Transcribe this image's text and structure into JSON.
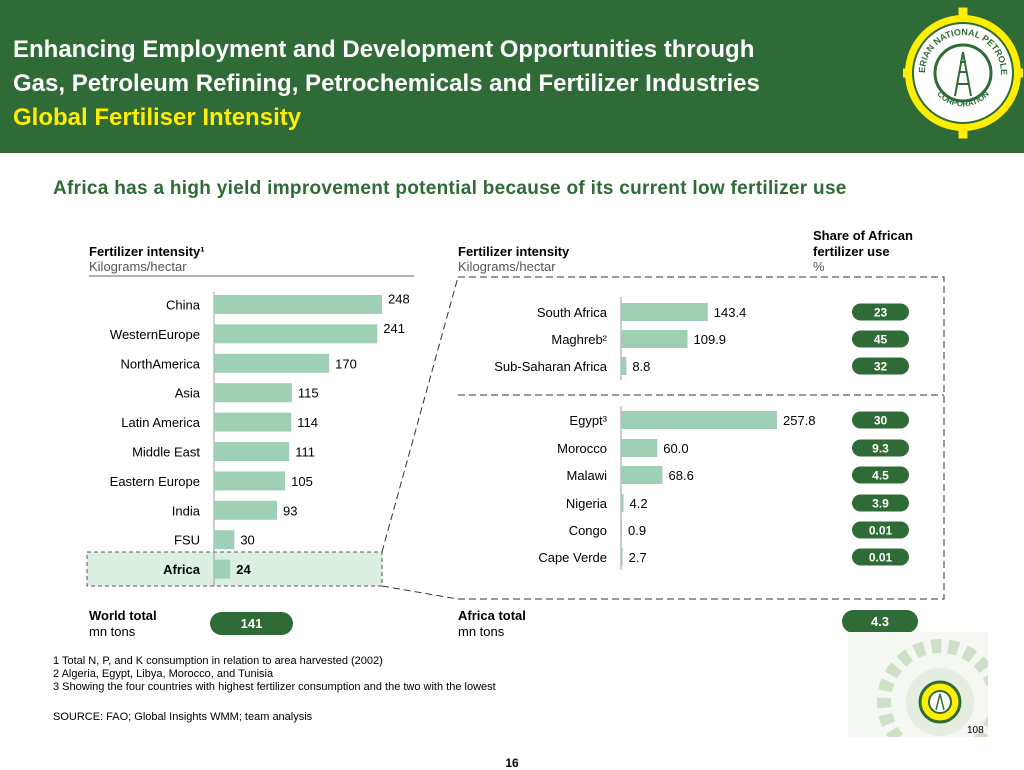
{
  "header": {
    "title_line1": "Enhancing Employment and Development Opportunities through",
    "title_line2": "Gas, Petroleum Refining, Petrochemicals and Fertilizer Industries",
    "subtitle": "Global Fertiliser Intensity",
    "logo_text_top": "NIGERIAN NATIONAL PETROLEUM",
    "logo_text_bottom": "CORPORATION"
  },
  "lead": "Africa has a high yield improvement potential because of its current low fertilizer use",
  "colors": {
    "green": "#2f6b36",
    "bar": "#9fd0b6",
    "yellow": "#ffee00",
    "highlight": "#dcefe3"
  },
  "left": {
    "title": "Fertilizer intensity¹",
    "unit": "Kilograms/hectar",
    "total_label": "World total",
    "total_unit": "mn tons",
    "total_value": "141"
  },
  "right": {
    "title": "Fertilizer intensity",
    "unit": "Kilograms/hectar",
    "share_title_1": "Share of African",
    "share_title_2": "fertilizer use",
    "share_unit": "%",
    "total_label": "Africa total",
    "total_unit": "mn tons",
    "total_value": "4.3"
  },
  "chart_data": [
    {
      "type": "bar",
      "orientation": "horizontal",
      "title": "Fertilizer intensity¹",
      "xlabel": "Kilograms/hectar",
      "categories": [
        "China",
        "WesternEurope",
        "NorthAmerica",
        "Asia",
        "Latin America",
        "Middle East",
        "Eastern Europe",
        "India",
        "FSU",
        "Africa"
      ],
      "values": [
        248,
        241,
        170,
        115,
        114,
        111,
        105,
        93,
        30,
        24
      ],
      "labels": [
        "248",
        "241",
        "170",
        "115",
        "114",
        "111",
        "105",
        "93",
        "30",
        "24"
      ],
      "highlight": "Africa",
      "xlim": [
        0,
        248
      ],
      "grid": false
    },
    {
      "type": "bar",
      "orientation": "horizontal",
      "title": "Fertilizer intensity",
      "xlabel": "Kilograms/hectar",
      "categories": [
        "South Africa",
        "Maghreb²",
        "Sub-Saharan Africa",
        "Egypt³",
        "Morocco",
        "Malawi",
        "Nigeria",
        "Congo",
        "Cape Verde"
      ],
      "values": [
        143.4,
        109.9,
        8.8,
        257.8,
        60.0,
        68.6,
        4.2,
        0.9,
        2.7
      ],
      "labels": [
        "143.4",
        "109.9",
        "8.8",
        "257.8",
        "60.0",
        "68.6",
        "4.2",
        "0.9",
        "2.7"
      ],
      "share_title": "Share of African fertilizer use",
      "share_unit": "%",
      "shares": [
        "23",
        "45",
        "32",
        "30",
        "9.3",
        "4.5",
        "3.9",
        "0.01",
        "0.01"
      ],
      "xlim": [
        0,
        257.8
      ],
      "grid": false
    }
  ],
  "footnotes": [
    "1 Total N, P, and K consumption in relation to area harvested (2002)",
    "2 Algeria, Egypt, Libya, Morocco, and Tunisia",
    "3 Showing the four countries with highest fertilizer consumption and the two with the lowest"
  ],
  "source": "SOURCE: FAO; Global Insights WMM; team analysis",
  "page_number": "16",
  "corner_number": "108"
}
